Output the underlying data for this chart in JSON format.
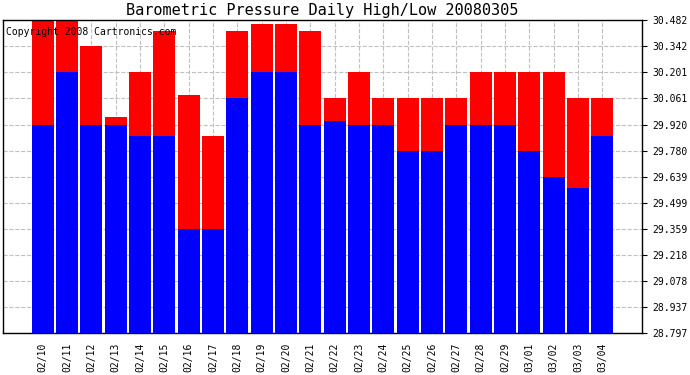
{
  "title": "Barometric Pressure Daily High/Low 20080305",
  "copyright": "Copyright 2008 Cartronics.com",
  "dates": [
    "02/10",
    "02/11",
    "02/12",
    "02/13",
    "02/14",
    "02/15",
    "02/16",
    "02/17",
    "02/18",
    "02/19",
    "02/20",
    "02/21",
    "02/22",
    "02/23",
    "02/24",
    "02/25",
    "02/26",
    "02/27",
    "02/28",
    "02/29",
    "03/01",
    "03/02",
    "03/03",
    "03/04"
  ],
  "highs": [
    30.482,
    30.482,
    30.342,
    29.96,
    30.201,
    30.422,
    30.08,
    29.86,
    30.422,
    30.46,
    30.46,
    30.422,
    30.061,
    30.201,
    30.061,
    30.061,
    30.061,
    30.061,
    30.201,
    30.201,
    30.201,
    30.201,
    30.061,
    30.061
  ],
  "lows": [
    29.92,
    30.201,
    29.92,
    29.92,
    29.86,
    29.86,
    29.359,
    29.359,
    30.061,
    30.201,
    30.201,
    29.92,
    29.94,
    29.92,
    29.92,
    29.78,
    29.78,
    29.92,
    29.92,
    29.92,
    29.78,
    29.639,
    29.58,
    29.86
  ],
  "high_color": "#ff0000",
  "low_color": "#0000ff",
  "bg_color": "#ffffff",
  "plot_bg_color": "#ffffff",
  "grid_color": "#c0c0c0",
  "yticks": [
    28.797,
    28.937,
    29.078,
    29.218,
    29.359,
    29.499,
    29.639,
    29.78,
    29.92,
    30.061,
    30.201,
    30.342,
    30.482
  ],
  "ymin": 28.797,
  "ymax": 30.482,
  "title_fontsize": 11,
  "tick_fontsize": 7,
  "copyright_fontsize": 7
}
